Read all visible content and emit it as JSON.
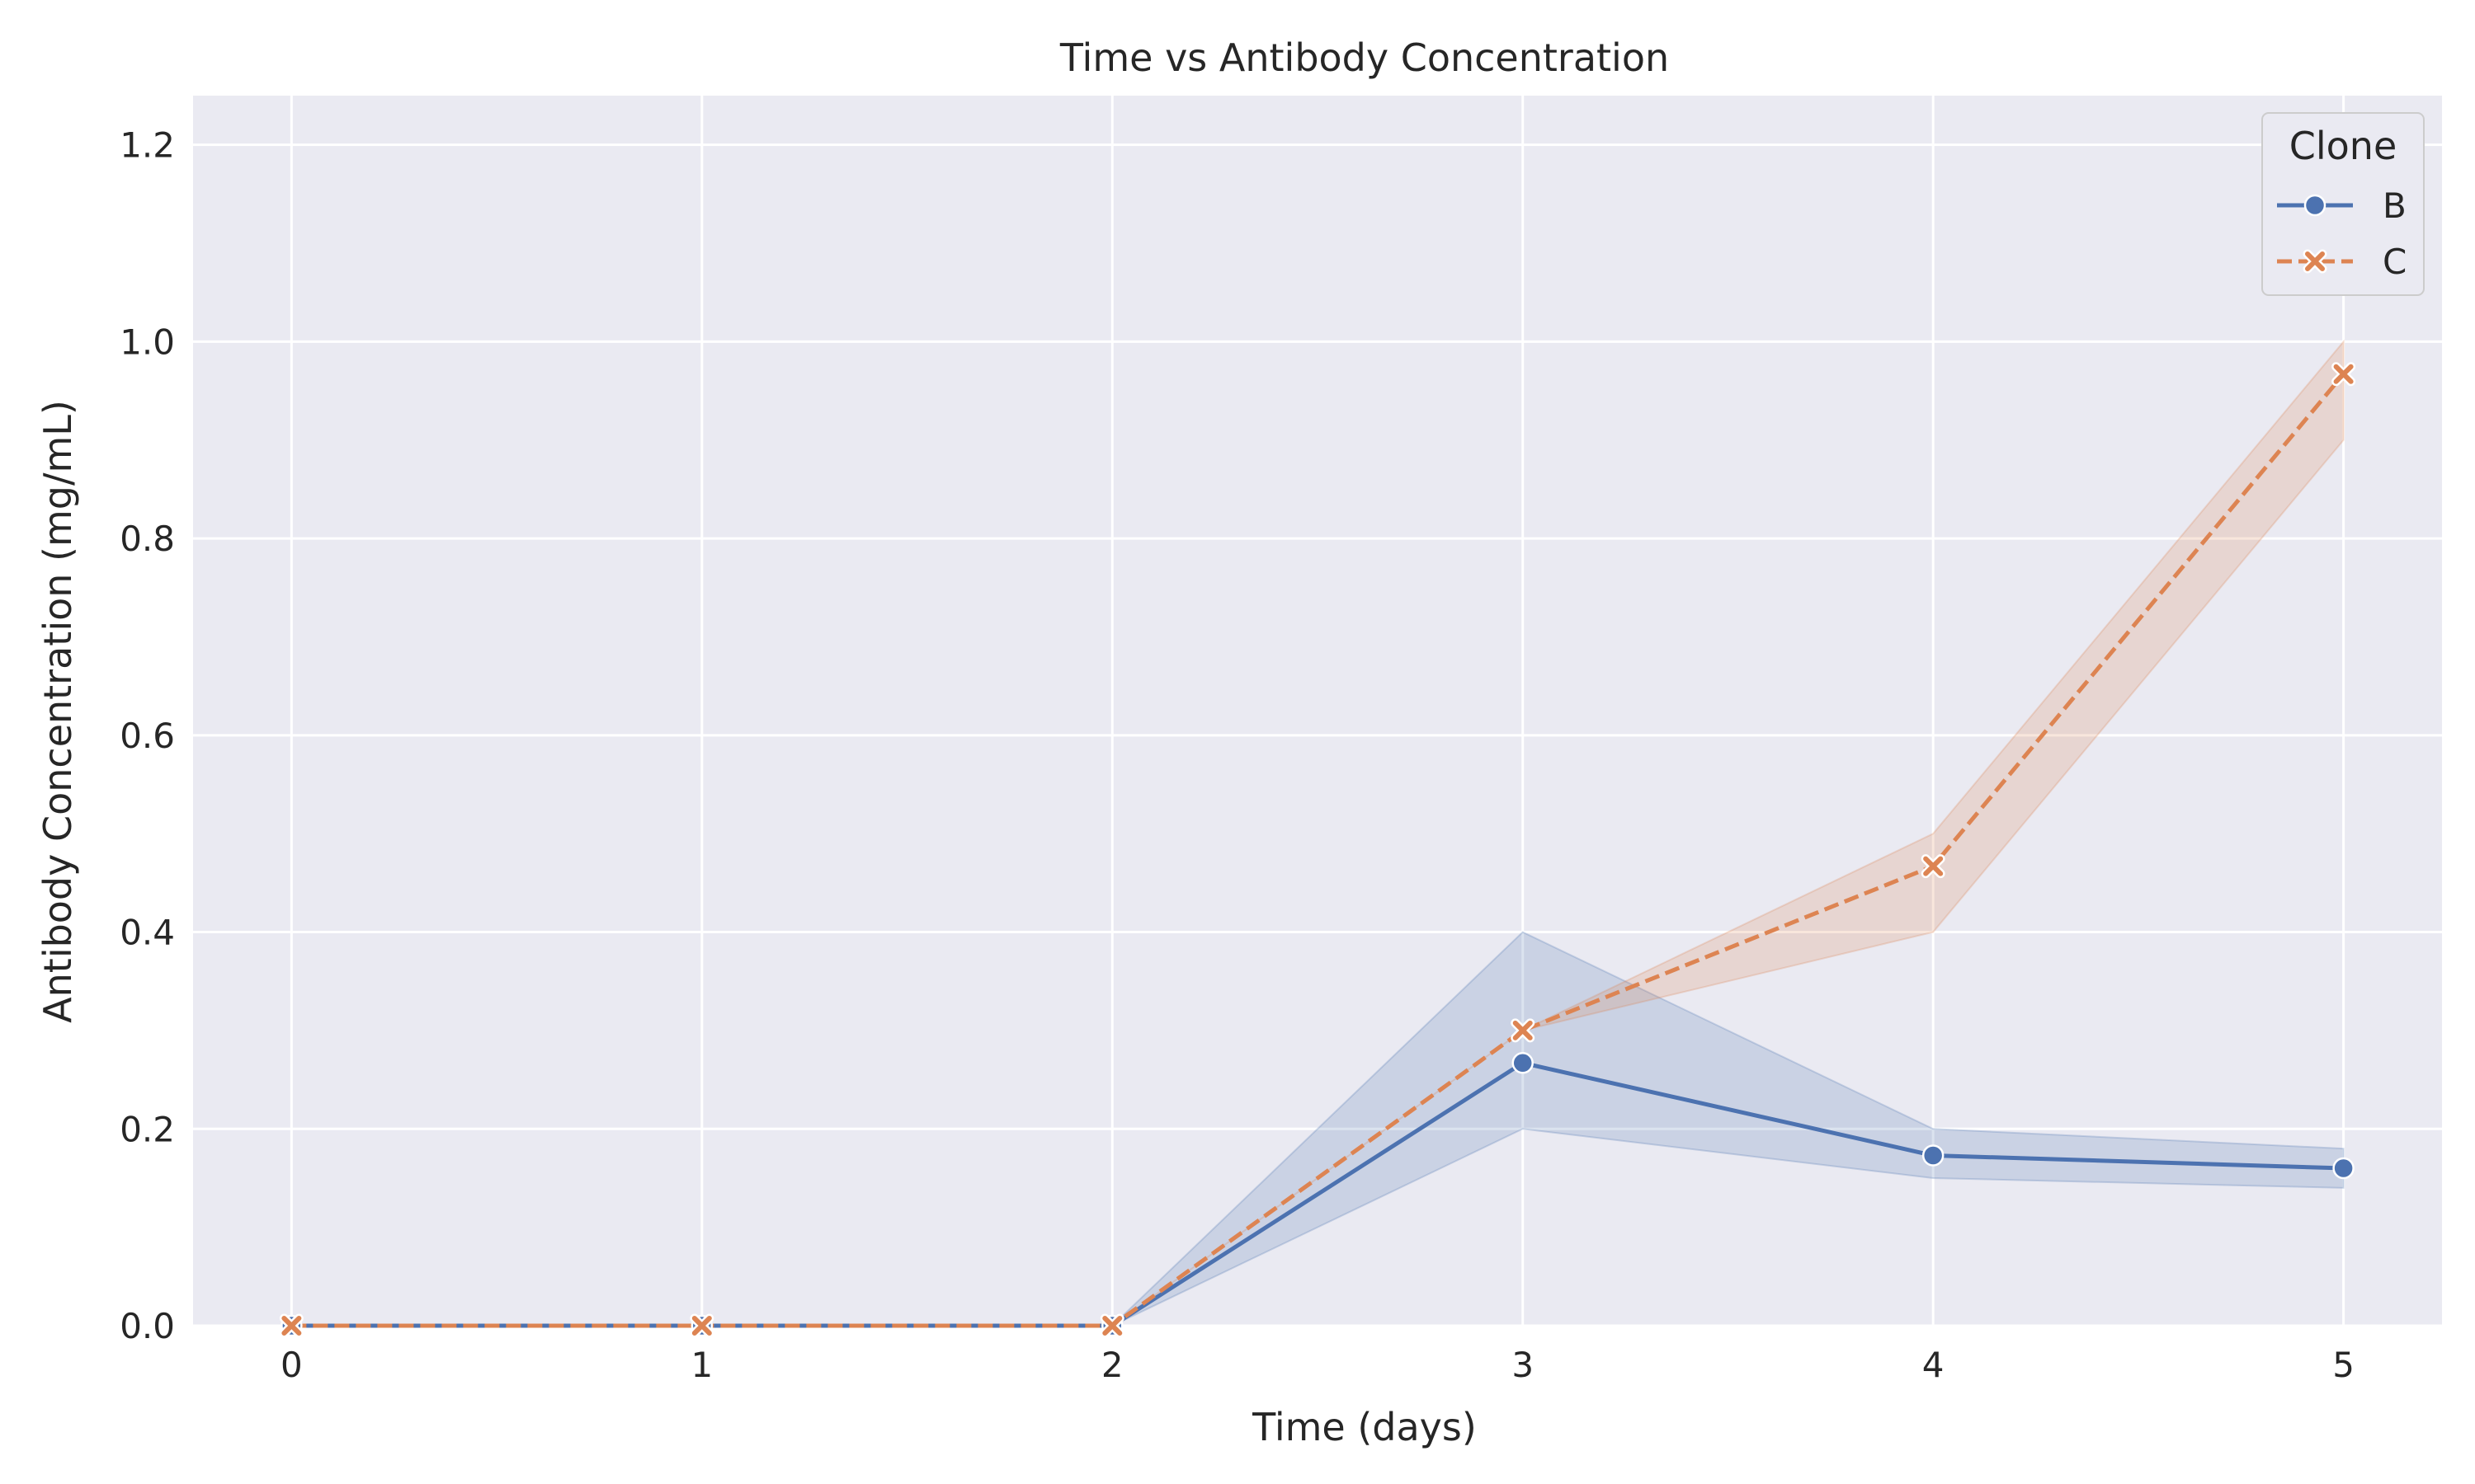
{
  "chart_data": {
    "type": "line",
    "title": "Time vs Antibody Concentration",
    "xlabel": "Time (days)",
    "ylabel": "Antibody Concentration (mg/mL)",
    "x": [
      0,
      1,
      2,
      3,
      4,
      5
    ],
    "xticks": [
      "0",
      "1",
      "2",
      "3",
      "4",
      "5"
    ],
    "yticks": [
      "0.0",
      "0.2",
      "0.4",
      "0.6",
      "0.8",
      "1.0",
      "1.2"
    ],
    "xlim": [
      -0.24,
      5.24
    ],
    "ylim": [
      0,
      1.25
    ],
    "grid": true,
    "legend": {
      "title": "Clone",
      "position": "top-right"
    },
    "series": [
      {
        "name": "B",
        "color": "#4c72b0",
        "marker": "circle",
        "linestyle": "solid",
        "values": [
          0.0,
          0.0,
          0.0,
          0.267,
          0.173,
          0.16
        ],
        "ci_low": [
          0.0,
          0.0,
          0.0,
          0.2,
          0.15,
          0.14
        ],
        "ci_high": [
          0.0,
          0.0,
          0.0,
          0.4,
          0.2,
          0.18
        ]
      },
      {
        "name": "C",
        "color": "#dd8452",
        "marker": "x",
        "linestyle": "dashed",
        "values": [
          0.0,
          0.0,
          0.0,
          0.3,
          0.467,
          0.967
        ],
        "ci_low": [
          0.0,
          0.0,
          0.0,
          0.3,
          0.4,
          0.9
        ],
        "ci_high": [
          0.0,
          0.0,
          0.0,
          0.3,
          0.5,
          1.0
        ]
      }
    ]
  }
}
